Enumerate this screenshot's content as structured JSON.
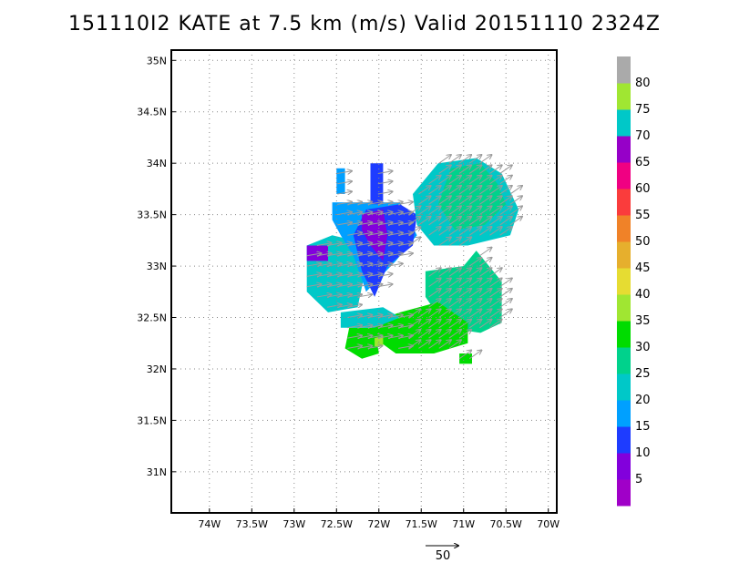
{
  "title": "151110I2 KATE at 7.5 km (m/s) Valid 20151110 2324Z",
  "chart_data": {
    "type": "heatmap",
    "title": "151110I2 KATE at 7.5 km (m/s) Valid 20151110 2324Z",
    "xlim": [
      -74.45,
      -69.9
    ],
    "ylim": [
      30.6,
      35.1
    ],
    "x_ticks": [
      {
        "value": -74,
        "label": "74W"
      },
      {
        "value": -73.5,
        "label": "73.5W"
      },
      {
        "value": -73,
        "label": "73W"
      },
      {
        "value": -72.5,
        "label": "72.5W"
      },
      {
        "value": -72,
        "label": "72W"
      },
      {
        "value": -71.5,
        "label": "71.5W"
      },
      {
        "value": -71,
        "label": "71W"
      },
      {
        "value": -70.5,
        "label": "70.5W"
      },
      {
        "value": -70,
        "label": "70W"
      }
    ],
    "y_ticks": [
      {
        "value": 31,
        "label": "31N"
      },
      {
        "value": 31.5,
        "label": "31.5N"
      },
      {
        "value": 32,
        "label": "32N"
      },
      {
        "value": 32.5,
        "label": "32.5N"
      },
      {
        "value": 33,
        "label": "33N"
      },
      {
        "value": 33.5,
        "label": "33.5N"
      },
      {
        "value": 34,
        "label": "34N"
      },
      {
        "value": 34.5,
        "label": "34.5N"
      },
      {
        "value": 35,
        "label": "35N"
      }
    ],
    "grid": true,
    "colorbar": {
      "labels": [
        "5",
        "10",
        "15",
        "20",
        "25",
        "30",
        "35",
        "40",
        "45",
        "50",
        "55",
        "60",
        "65",
        "70",
        "75",
        "80"
      ],
      "colors": [
        "#a000c8",
        "#8200dc",
        "#1e3cff",
        "#00a0ff",
        "#00c8c8",
        "#00d28c",
        "#00dc00",
        "#a0e632",
        "#e6dc32",
        "#e6af2d",
        "#f08228",
        "#fa3c3c",
        "#f00082",
        "#9600c8",
        "#00c8c8",
        "#a0e632",
        "#aaaaaa"
      ]
    },
    "regions": [
      {
        "level": 20,
        "polygon": [
          [
            -72.85,
            33.2
          ],
          [
            -72.55,
            33.3
          ],
          [
            -72.3,
            33.25
          ],
          [
            -72.15,
            33.0
          ],
          [
            -72.25,
            32.6
          ],
          [
            -72.6,
            32.55
          ],
          [
            -72.85,
            32.75
          ]
        ]
      },
      {
        "level": 15,
        "polygon": [
          [
            -72.55,
            33.62
          ],
          [
            -71.75,
            33.62
          ],
          [
            -71.55,
            33.3
          ],
          [
            -71.8,
            33.05
          ],
          [
            -72.15,
            32.75
          ],
          [
            -72.3,
            33.1
          ],
          [
            -72.45,
            33.3
          ],
          [
            -72.55,
            33.45
          ]
        ]
      },
      {
        "level": 10,
        "polygon": [
          [
            -72.15,
            33.55
          ],
          [
            -71.75,
            33.6
          ],
          [
            -71.55,
            33.5
          ],
          [
            -71.6,
            33.2
          ],
          [
            -71.9,
            33.0
          ],
          [
            -72.05,
            32.7
          ],
          [
            -72.2,
            32.95
          ],
          [
            -72.3,
            33.3
          ]
        ]
      },
      {
        "level": 5,
        "polygon": [
          [
            -72.2,
            33.5
          ],
          [
            -71.95,
            33.55
          ],
          [
            -71.9,
            33.3
          ],
          [
            -71.95,
            33.05
          ],
          [
            -72.1,
            33.2
          ],
          [
            -72.2,
            33.35
          ]
        ]
      },
      {
        "level": 15,
        "polygon": [
          [
            -72.5,
            33.95
          ],
          [
            -72.4,
            33.95
          ],
          [
            -72.4,
            33.7
          ],
          [
            -72.5,
            33.7
          ]
        ]
      },
      {
        "level": 10,
        "polygon": [
          [
            -72.1,
            34.0
          ],
          [
            -71.95,
            34.0
          ],
          [
            -71.95,
            33.6
          ],
          [
            -72.1,
            33.6
          ]
        ]
      },
      {
        "level": 5,
        "polygon": [
          [
            -72.85,
            33.2
          ],
          [
            -72.6,
            33.2
          ],
          [
            -72.6,
            33.05
          ],
          [
            -72.85,
            33.05
          ]
        ]
      },
      {
        "level": 20,
        "polygon": [
          [
            -71.6,
            33.7
          ],
          [
            -71.3,
            34.0
          ],
          [
            -70.85,
            34.05
          ],
          [
            -70.55,
            33.9
          ],
          [
            -70.35,
            33.55
          ],
          [
            -70.45,
            33.3
          ],
          [
            -70.95,
            33.2
          ],
          [
            -71.35,
            33.2
          ],
          [
            -71.55,
            33.4
          ]
        ]
      },
      {
        "level": 25,
        "polygon": [
          [
            -71.15,
            33.95
          ],
          [
            -70.8,
            34.0
          ],
          [
            -70.6,
            33.8
          ],
          [
            -70.5,
            33.6
          ],
          [
            -70.75,
            33.4
          ],
          [
            -71.1,
            33.35
          ],
          [
            -71.3,
            33.6
          ]
        ]
      },
      {
        "level": 25,
        "polygon": [
          [
            -71.45,
            32.95
          ],
          [
            -71.0,
            33.0
          ],
          [
            -70.85,
            33.15
          ],
          [
            -70.55,
            32.85
          ],
          [
            -70.55,
            32.45
          ],
          [
            -70.8,
            32.35
          ],
          [
            -71.2,
            32.4
          ],
          [
            -71.45,
            32.7
          ]
        ]
      },
      {
        "level": 30,
        "polygon": [
          [
            -72.1,
            32.45
          ],
          [
            -71.75,
            32.55
          ],
          [
            -71.3,
            32.65
          ],
          [
            -70.95,
            32.45
          ],
          [
            -70.95,
            32.25
          ],
          [
            -71.35,
            32.15
          ],
          [
            -71.8,
            32.15
          ],
          [
            -72.05,
            32.3
          ]
        ]
      },
      {
        "level": 30,
        "polygon": [
          [
            -72.35,
            32.4
          ],
          [
            -72.05,
            32.4
          ],
          [
            -72.0,
            32.15
          ],
          [
            -72.2,
            32.1
          ],
          [
            -72.4,
            32.2
          ]
        ]
      },
      {
        "level": 20,
        "polygon": [
          [
            -72.45,
            32.55
          ],
          [
            -71.95,
            32.6
          ],
          [
            -71.75,
            32.5
          ],
          [
            -72.05,
            32.4
          ],
          [
            -72.45,
            32.4
          ]
        ]
      },
      {
        "level": 35,
        "polygon": [
          [
            -72.05,
            32.3
          ],
          [
            -71.95,
            32.32
          ],
          [
            -71.95,
            32.22
          ],
          [
            -72.05,
            32.22
          ]
        ]
      },
      {
        "level": 30,
        "polygon": [
          [
            -71.05,
            32.15
          ],
          [
            -70.9,
            32.15
          ],
          [
            -70.9,
            32.05
          ],
          [
            -71.05,
            32.05
          ]
        ]
      }
    ],
    "vector_reference": {
      "label": "50"
    }
  }
}
